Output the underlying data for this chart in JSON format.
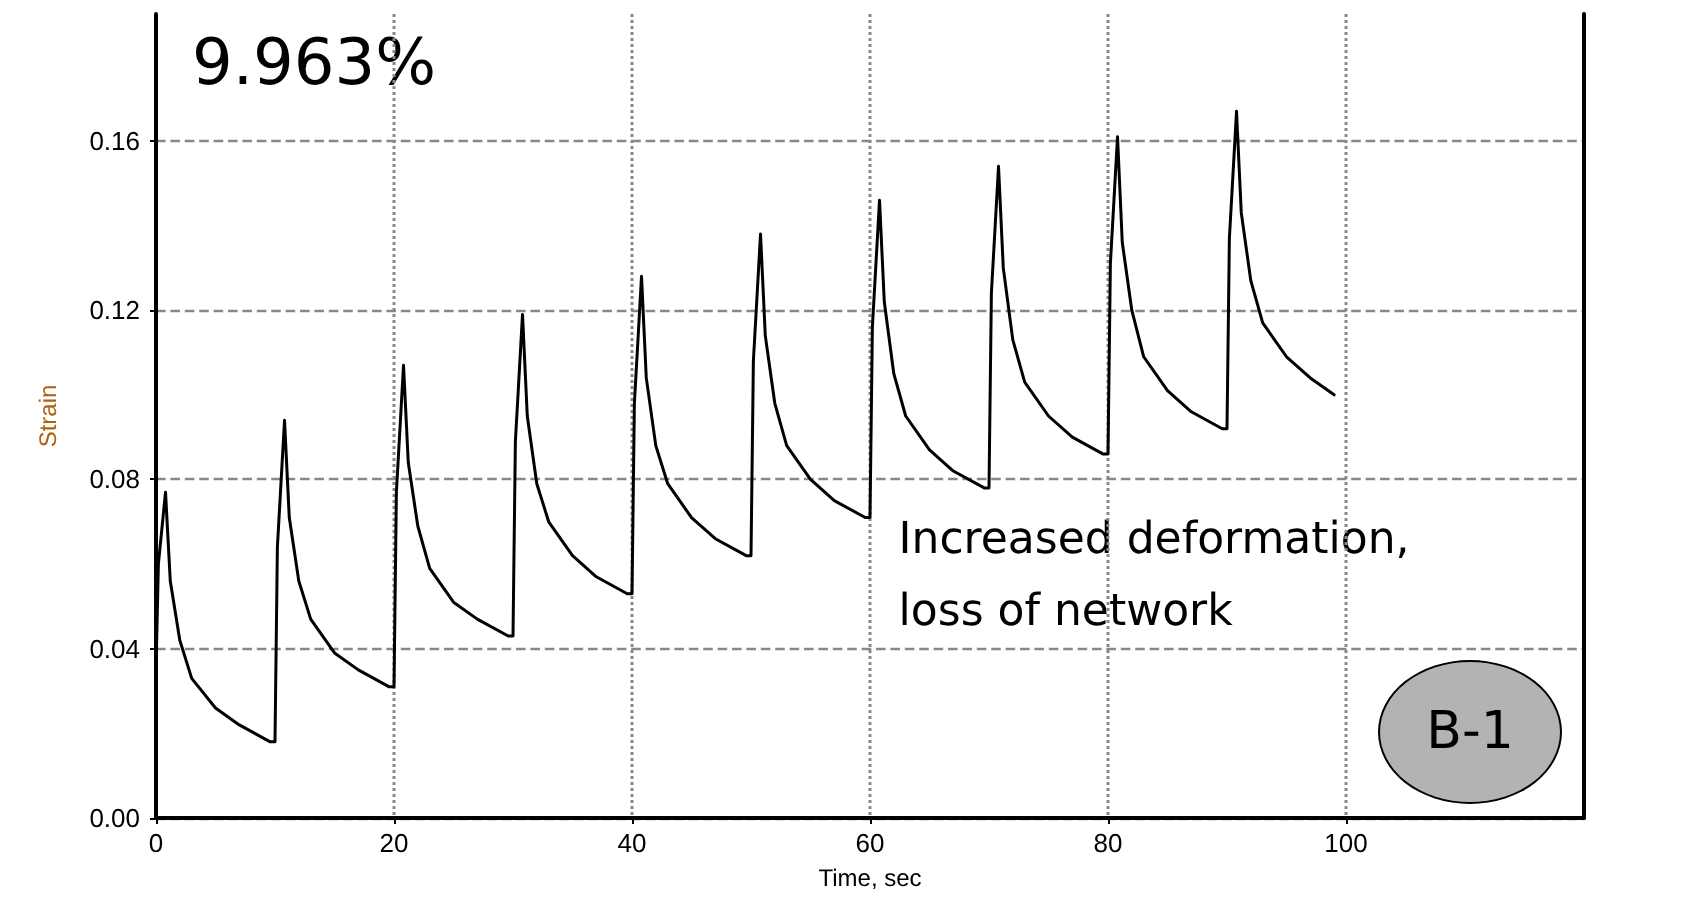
{
  "chart_data": {
    "type": "line",
    "xlabel": "Time, sec",
    "ylabel": "Strain",
    "annotations": [
      "9.963%",
      "Increased deformation,\nloss of network",
      "B-1"
    ],
    "xlim": [
      0,
      120
    ],
    "xticks": [
      0,
      20,
      40,
      60,
      80,
      100
    ],
    "ylim": [
      0,
      0.19
    ],
    "yticks": [
      {
        "value": 0,
        "label": "0.00"
      },
      {
        "value": 0.04,
        "label": "0.04"
      },
      {
        "value": 0.08,
        "label": "0.08"
      },
      {
        "value": 0.12,
        "label": "0.12"
      },
      {
        "value": 0.16,
        "label": "0.16"
      }
    ],
    "grid": true,
    "marker": "none",
    "line_style": "solid",
    "series": [
      {
        "color": "#000000",
        "x": [
          0,
          0.2,
          0.8,
          1.2,
          2,
          3,
          5,
          7,
          9.6,
          10,
          10.2,
          10.8,
          11.2,
          12,
          13,
          15,
          17,
          19.6,
          20,
          20.2,
          20.8,
          21.2,
          22,
          23,
          25,
          27,
          29.6,
          30,
          30.2,
          30.8,
          31.2,
          32,
          33,
          35,
          37,
          39.6,
          40,
          40.2,
          40.8,
          41.2,
          42,
          43,
          45,
          47,
          49.6,
          50,
          50.2,
          50.8,
          51.2,
          52,
          53,
          55,
          57,
          59.6,
          60,
          60.2,
          60.8,
          61.2,
          62,
          63,
          65,
          67,
          69.6,
          70,
          70.2,
          70.8,
          71.2,
          72,
          73,
          75,
          77,
          79.6,
          80,
          80.2,
          80.8,
          81.2,
          82,
          83,
          85,
          87,
          89.6,
          90,
          90.2,
          90.8,
          91.2,
          92,
          93,
          95,
          97,
          99
        ],
        "values": [
          0.035,
          0.06,
          0.077,
          0.056,
          0.042,
          0.033,
          0.026,
          0.022,
          0.018,
          0.018,
          0.064,
          0.094,
          0.071,
          0.056,
          0.047,
          0.039,
          0.035,
          0.031,
          0.031,
          0.077,
          0.107,
          0.084,
          0.069,
          0.059,
          0.051,
          0.047,
          0.043,
          0.043,
          0.089,
          0.119,
          0.095,
          0.079,
          0.07,
          0.062,
          0.057,
          0.053,
          0.053,
          0.098,
          0.128,
          0.104,
          0.088,
          0.079,
          0.071,
          0.066,
          0.062,
          0.062,
          0.108,
          0.138,
          0.114,
          0.098,
          0.088,
          0.08,
          0.075,
          0.071,
          0.071,
          0.116,
          0.146,
          0.122,
          0.105,
          0.095,
          0.087,
          0.082,
          0.078,
          0.078,
          0.124,
          0.154,
          0.13,
          0.113,
          0.103,
          0.095,
          0.09,
          0.086,
          0.086,
          0.131,
          0.161,
          0.136,
          0.12,
          0.109,
          0.101,
          0.096,
          0.092,
          0.092,
          0.137,
          0.167,
          0.143,
          0.127,
          0.117,
          0.109,
          0.104,
          0.1
        ]
      }
    ]
  }
}
